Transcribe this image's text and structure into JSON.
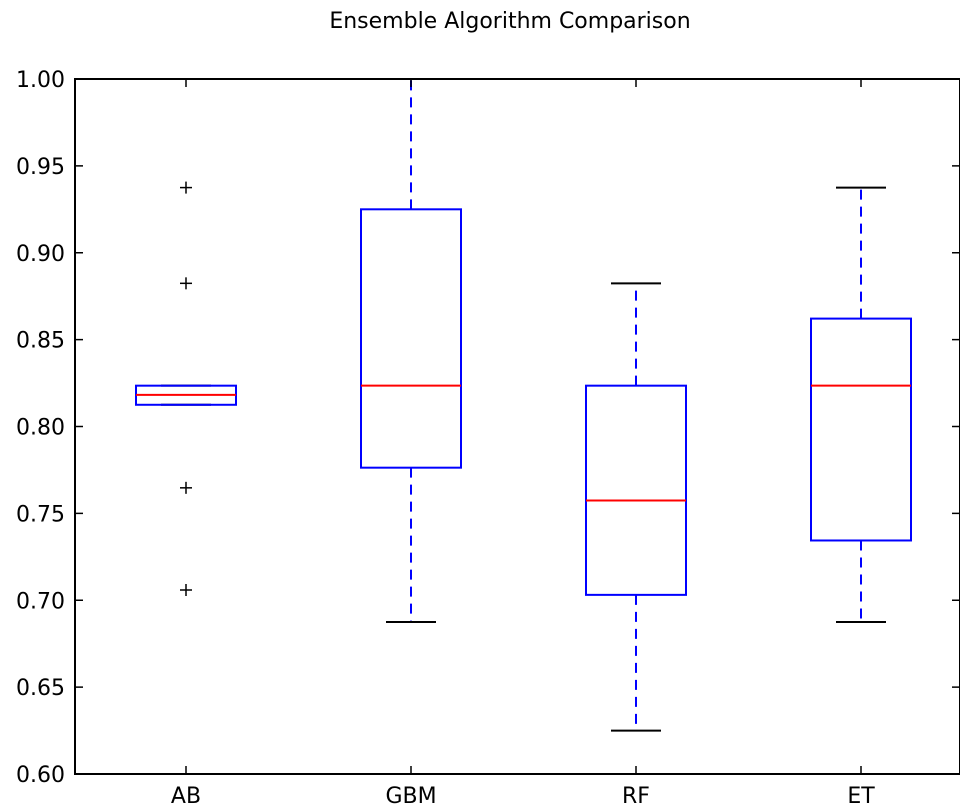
{
  "chart_data": {
    "type": "box",
    "title": "Ensemble Algorithm Comparison",
    "xlabel": "",
    "ylabel": "",
    "ylim": [
      0.6,
      1.0
    ],
    "yticks": [
      "0.60",
      "0.65",
      "0.70",
      "0.75",
      "0.80",
      "0.85",
      "0.90",
      "0.95",
      "1.00"
    ],
    "categories": [
      "AB",
      "GBM",
      "RF",
      "ET"
    ],
    "boxes": [
      {
        "name": "AB",
        "whisker_low": 0.8125,
        "q1": 0.8125,
        "median": 0.8182,
        "q3": 0.8235,
        "whisker_high": 0.8235,
        "outliers": [
          0.9375,
          0.8824,
          0.7647,
          0.7059
        ]
      },
      {
        "name": "GBM",
        "whisker_low": 0.6875,
        "q1": 0.7763,
        "median": 0.8235,
        "q3": 0.925,
        "whisker_high": 1.0,
        "outliers": []
      },
      {
        "name": "RF",
        "whisker_low": 0.625,
        "q1": 0.7031,
        "median": 0.7574,
        "q3": 0.8235,
        "whisker_high": 0.8824,
        "outliers": []
      },
      {
        "name": "ET",
        "whisker_low": 0.6875,
        "q1": 0.7344,
        "median": 0.8235,
        "q3": 0.8621,
        "whisker_high": 0.9375,
        "outliers": []
      }
    ],
    "colors": {
      "box": "#0000ff",
      "median": "#ff0000",
      "whisker": "#0000ff",
      "cap": "#000000",
      "outlier": "#000000",
      "axes": "#000000"
    },
    "grid": false
  }
}
